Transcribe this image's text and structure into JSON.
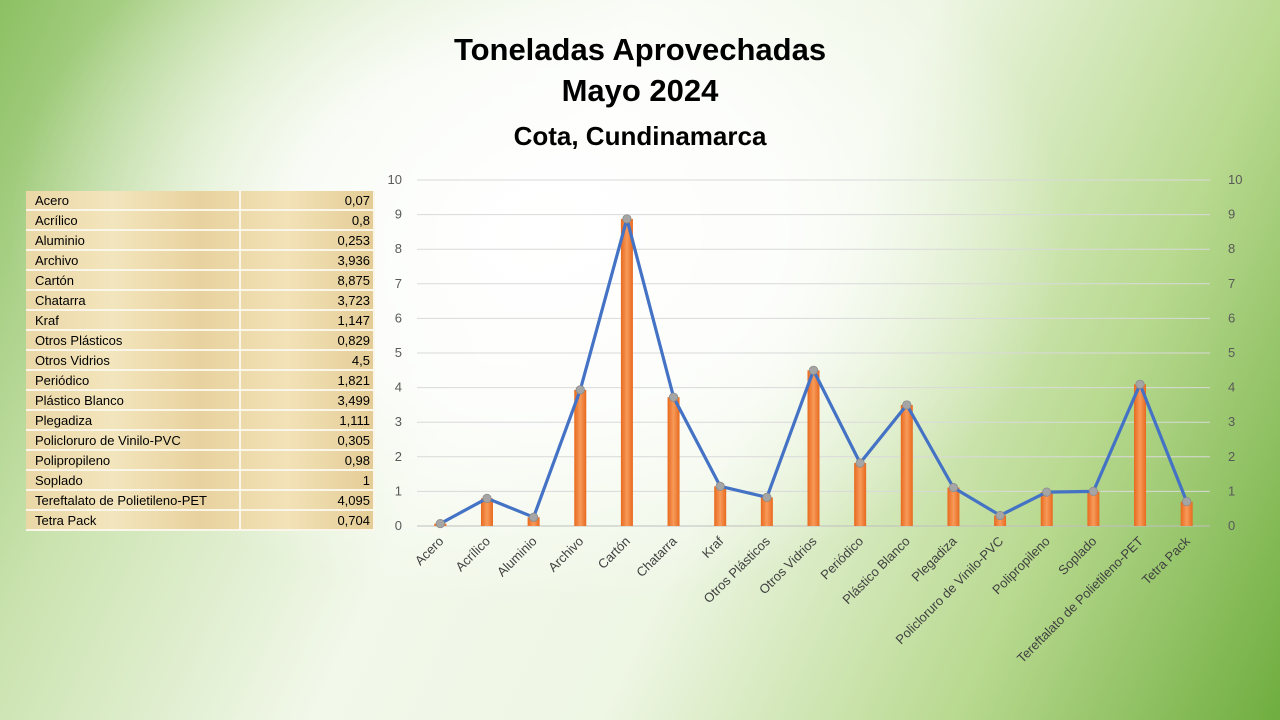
{
  "title": {
    "line1": "Toneladas Aprovechadas",
    "line2": "Mayo 2024",
    "line3": "Cota, Cundinamarca"
  },
  "table": {
    "rows": [
      {
        "label": "Acero",
        "value": "0,07"
      },
      {
        "label": "Acrílico",
        "value": "0,8"
      },
      {
        "label": "Aluminio",
        "value": "0,253"
      },
      {
        "label": "Archivo",
        "value": "3,936"
      },
      {
        "label": "Cartón",
        "value": "8,875"
      },
      {
        "label": "Chatarra",
        "value": "3,723"
      },
      {
        "label": "Kraf",
        "value": "1,147"
      },
      {
        "label": "Otros Plásticos",
        "value": "0,829"
      },
      {
        "label": "Otros Vidrios",
        "value": "4,5"
      },
      {
        "label": "Periódico",
        "value": "1,821"
      },
      {
        "label": "Plástico Blanco",
        "value": "3,499"
      },
      {
        "label": "Plegadiza",
        "value": "1,111"
      },
      {
        "label": "Policloruro de Vinilo-PVC",
        "value": "0,305"
      },
      {
        "label": "Polipropileno",
        "value": "0,98"
      },
      {
        "label": "Soplado",
        "value": "1"
      },
      {
        "label": "Tereftalato de Polietileno-PET",
        "value": "4,095"
      },
      {
        "label": "Tetra Pack",
        "value": "0,704"
      }
    ]
  },
  "chart_data": {
    "type": "bar",
    "title": "Toneladas Aprovechadas Mayo 2024 Cota, Cundinamarca",
    "categories": [
      "Acero",
      "Acrílico",
      "Aluminio",
      "Archivo",
      "Cartón",
      "Chatarra",
      "Kraf",
      "Otros Plásticos",
      "Otros Vidrios",
      "Periódico",
      "Plástico Blanco",
      "Plegadiza",
      "Policloruro de Vinilo-PVC",
      "Polipropileno",
      "Soplado",
      "Tereftalato de Polietileno-PET",
      "Tetra Pack"
    ],
    "series": [
      {
        "type": "bar",
        "values": [
          0.07,
          0.8,
          0.253,
          3.936,
          8.875,
          3.723,
          1.147,
          0.829,
          4.5,
          1.821,
          3.499,
          1.111,
          0.305,
          0.98,
          1,
          4.095,
          0.704
        ],
        "color": "#ed7d31"
      },
      {
        "type": "line",
        "values": [
          0.07,
          0.8,
          0.253,
          3.936,
          8.875,
          3.723,
          1.147,
          0.829,
          4.5,
          1.821,
          3.499,
          1.111,
          0.305,
          0.98,
          1,
          4.095,
          0.704
        ],
        "color": "#4472c4",
        "marker_color": "#a5a5a5"
      }
    ],
    "ylim": [
      0,
      10
    ],
    "y_ticks": [
      0,
      1,
      2,
      3,
      4,
      5,
      6,
      7,
      8,
      9,
      10
    ],
    "y2lim": [
      0,
      10
    ],
    "y2_ticks": [
      0,
      1,
      2,
      3,
      4,
      5,
      6,
      7,
      8,
      9,
      10
    ],
    "grid": true,
    "legend": "none"
  }
}
